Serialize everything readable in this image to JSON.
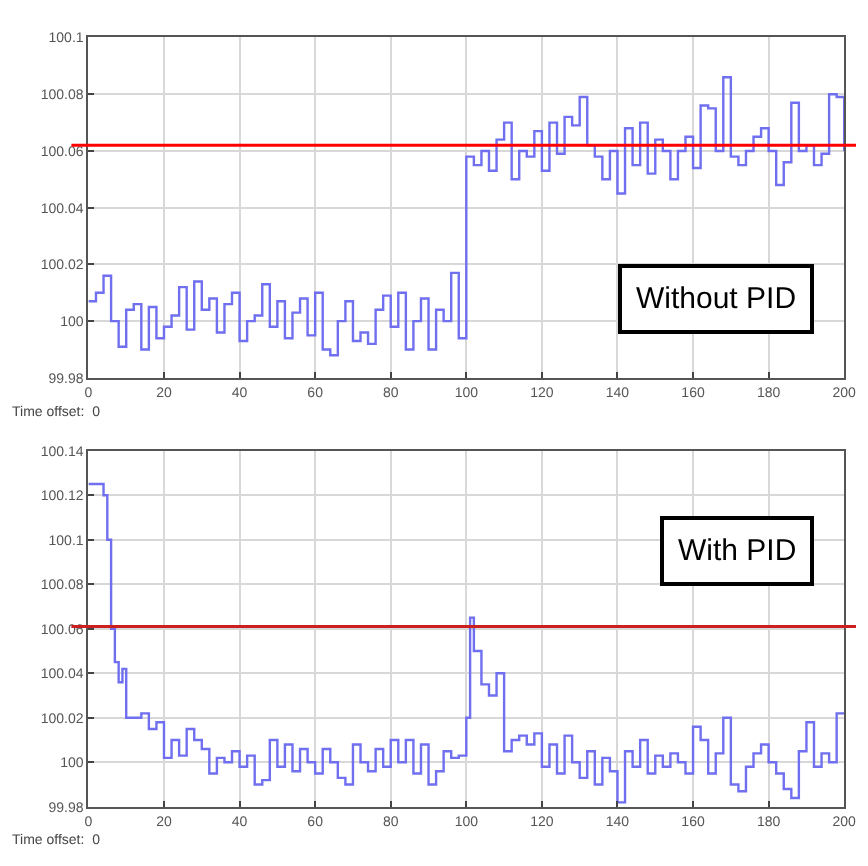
{
  "chart_data": [
    {
      "type": "step",
      "xlim": [
        0,
        200
      ],
      "xticks": [
        0,
        20,
        40,
        60,
        80,
        100,
        120,
        140,
        160,
        180,
        200
      ],
      "ylim": [
        99.98,
        100.1
      ],
      "yticks": [
        99.98,
        100,
        100.02,
        100.04,
        100.06,
        100.08,
        100.1
      ],
      "grid": true,
      "annotations": [
        "Without PID",
        "Time offset:  0"
      ],
      "ref_lines": [
        {
          "axis": "y",
          "value": 100.062,
          "label": null,
          "color": "#ff0000"
        }
      ],
      "x": [
        0,
        2,
        4,
        6,
        8,
        10,
        12,
        14,
        16,
        18,
        20,
        22,
        24,
        26,
        28,
        30,
        32,
        34,
        36,
        38,
        40,
        42,
        44,
        46,
        48,
        50,
        52,
        54,
        56,
        58,
        60,
        62,
        64,
        66,
        68,
        70,
        72,
        74,
        76,
        78,
        80,
        82,
        84,
        86,
        88,
        90,
        92,
        94,
        96,
        98,
        100,
        102,
        104,
        106,
        108,
        110,
        112,
        114,
        116,
        118,
        120,
        122,
        124,
        126,
        128,
        130,
        132,
        134,
        136,
        138,
        140,
        142,
        144,
        146,
        148,
        150,
        152,
        154,
        156,
        158,
        160,
        162,
        164,
        166,
        168,
        170,
        172,
        174,
        176,
        178,
        180,
        182,
        184,
        186,
        188,
        190,
        192,
        194,
        196,
        198,
        200
      ],
      "series": [
        {
          "color": "#6f6ff0",
          "values": [
            100.007,
            100.01,
            100.016,
            100.0,
            99.991,
            100.004,
            100.006,
            99.99,
            100.005,
            99.994,
            99.998,
            100.002,
            100.012,
            99.997,
            100.014,
            100.004,
            100.008,
            99.996,
            100.006,
            100.01,
            99.993,
            100.0,
            100.002,
            100.013,
            99.998,
            100.007,
            99.994,
            100.003,
            100.008,
            99.995,
            100.01,
            99.99,
            99.988,
            100.0,
            100.007,
            99.993,
            99.996,
            99.992,
            100.004,
            100.009,
            99.998,
            100.01,
            99.99,
            100.0,
            100.008,
            99.99,
            100.004,
            100.0,
            100.017,
            99.994,
            100.058,
            100.055,
            100.06,
            100.053,
            100.064,
            100.07,
            100.05,
            100.06,
            100.058,
            100.067,
            100.053,
            100.07,
            100.059,
            100.072,
            100.069,
            100.079,
            100.062,
            100.058,
            100.05,
            100.06,
            100.045,
            100.068,
            100.055,
            100.07,
            100.052,
            100.064,
            100.06,
            100.05,
            100.06,
            100.065,
            100.054,
            100.076,
            100.075,
            100.06,
            100.086,
            100.058,
            100.055,
            100.06,
            100.065,
            100.068,
            100.06,
            100.048,
            100.056,
            100.077,
            100.06,
            100.062,
            100.055,
            100.059,
            100.08,
            100.079,
            100.06
          ]
        }
      ]
    },
    {
      "type": "step",
      "xlim": [
        0,
        200
      ],
      "xticks": [
        0,
        20,
        40,
        60,
        80,
        100,
        120,
        140,
        160,
        180,
        200
      ],
      "ylim": [
        99.98,
        100.14
      ],
      "yticks": [
        99.98,
        100,
        100.02,
        100.04,
        100.06,
        100.08,
        100.1,
        100.12,
        100.14
      ],
      "grid": true,
      "annotations": [
        "With PID",
        "Time offset:  0"
      ],
      "ref_lines": [
        {
          "axis": "y",
          "value": 100.061,
          "label": null,
          "color": "#cc2020"
        }
      ],
      "x": [
        0,
        2,
        4,
        5,
        6,
        7,
        8,
        9,
        10,
        12,
        14,
        16,
        18,
        20,
        22,
        24,
        26,
        28,
        30,
        32,
        34,
        36,
        38,
        40,
        42,
        44,
        46,
        48,
        50,
        52,
        54,
        56,
        58,
        60,
        62,
        64,
        66,
        68,
        70,
        72,
        74,
        76,
        78,
        80,
        82,
        84,
        86,
        88,
        90,
        92,
        94,
        96,
        98,
        100,
        101,
        102,
        104,
        106,
        108,
        110,
        112,
        114,
        116,
        118,
        120,
        122,
        124,
        126,
        128,
        130,
        132,
        134,
        136,
        138,
        140,
        142,
        144,
        146,
        148,
        150,
        152,
        154,
        156,
        158,
        160,
        162,
        164,
        166,
        168,
        170,
        172,
        174,
        176,
        178,
        180,
        182,
        184,
        186,
        188,
        190,
        192,
        194,
        196,
        198,
        200
      ],
      "series": [
        {
          "color": "#6f6ff0",
          "values": [
            100.125,
            100.125,
            100.12,
            100.1,
            100.06,
            100.045,
            100.036,
            100.042,
            100.02,
            100.02,
            100.022,
            100.015,
            100.018,
            100.002,
            100.01,
            100.003,
            100.015,
            100.01,
            100.006,
            99.995,
            100.002,
            100.0,
            100.005,
            99.998,
            100.003,
            99.99,
            99.992,
            100.01,
            99.998,
            100.008,
            99.996,
            100.006,
            100.0,
            99.995,
            100.006,
            100.0,
            99.993,
            99.99,
            100.008,
            100.0,
            99.996,
            100.006,
            99.998,
            100.01,
            100.0,
            100.01,
            99.995,
            100.008,
            99.99,
            99.996,
            100.005,
            100.002,
            100.003,
            100.02,
            100.065,
            100.05,
            100.035,
            100.03,
            100.04,
            100.005,
            100.01,
            100.012,
            100.008,
            100.013,
            99.998,
            100.008,
            99.995,
            100.012,
            100.0,
            99.993,
            100.005,
            99.99,
            100.002,
            99.996,
            99.982,
            100.005,
            99.998,
            100.01,
            99.995,
            100.003,
            99.998,
            100.004,
            100.0,
            99.995,
            100.016,
            100.01,
            99.995,
            100.004,
            100.02,
            99.99,
            99.987,
            99.998,
            100.004,
            100.008,
            100.0,
            99.995,
            99.988,
            99.984,
            100.005,
            100.018,
            99.998,
            100.004,
            100.0,
            100.022,
            100.022
          ]
        }
      ]
    }
  ]
}
